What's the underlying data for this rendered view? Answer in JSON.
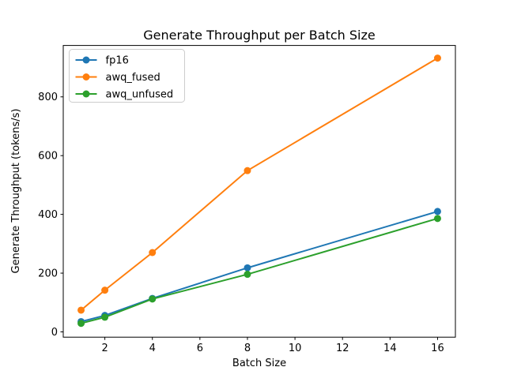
{
  "window": {
    "background": "#ffffff"
  },
  "chart_data": {
    "type": "line",
    "title": "Generate Throughput per Batch Size",
    "xlabel": "Batch Size",
    "ylabel": "Generate Throughput (tokens/s)",
    "x": [
      1,
      2,
      4,
      8,
      16
    ],
    "series": [
      {
        "name": "fp16",
        "color": "#1f77b4",
        "values": [
          35,
          56,
          114,
          218,
          410
        ]
      },
      {
        "name": "awq_fused",
        "color": "#ff7f0e",
        "values": [
          74,
          142,
          270,
          549,
          932
        ]
      },
      {
        "name": "awq_unfused",
        "color": "#2ca02c",
        "values": [
          29,
          50,
          112,
          196,
          386
        ]
      }
    ],
    "xticks": [
      2,
      4,
      6,
      8,
      10,
      12,
      14,
      16
    ],
    "yticks": [
      0,
      200,
      400,
      600,
      800
    ],
    "xlim": [
      0.25,
      16.75
    ],
    "ylim": [
      -18,
      975
    ],
    "grid": false,
    "legend": {
      "position": "upper-left",
      "entries": [
        "fp16",
        "awq_fused",
        "awq_unfused"
      ]
    },
    "marker": "o",
    "line_width": 2,
    "marker_radius": 4.5,
    "axis_color": "#000000",
    "legend_border_color": "#cccccc"
  }
}
